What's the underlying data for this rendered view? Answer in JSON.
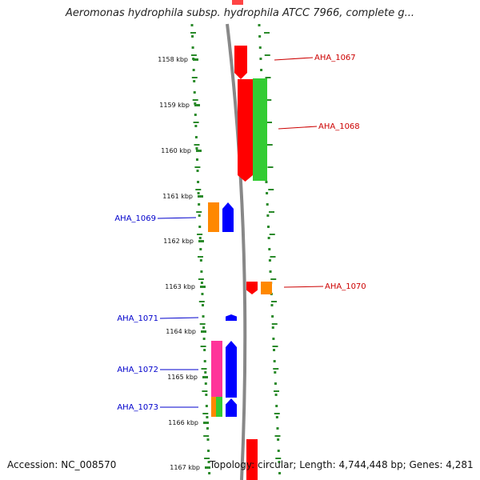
{
  "title": "Aeromonas hydrophila subsp. hydrophila ATCC 7966, complete g...",
  "footer": {
    "accession": "Accession: NC_008570",
    "topology": "Topology: circular; Length: 4,744,448 bp; Genes: 4,281"
  },
  "ruler": {
    "unit": "kbp",
    "ticks": [
      1158,
      1159,
      1160,
      1161,
      1162,
      1163,
      1164,
      1165,
      1166,
      1167
    ]
  },
  "genes": [
    {
      "name": "AHA_1067",
      "strand": "+",
      "color": "#cc0000"
    },
    {
      "name": "AHA_1068",
      "strand": "+",
      "color": "#cc0000"
    },
    {
      "name": "AHA_1069",
      "strand": "-",
      "color": "#0000cc"
    },
    {
      "name": "AHA_1070",
      "strand": "+",
      "color": "#cc0000"
    },
    {
      "name": "AHA_1071",
      "strand": "-",
      "color": "#0000cc"
    },
    {
      "name": "AHA_1072",
      "strand": "-",
      "color": "#0000cc"
    },
    {
      "name": "AHA_1073",
      "strand": "-",
      "color": "#0000cc"
    }
  ],
  "colors": {
    "ticks": "#2a8a2a",
    "backbone": "#888888",
    "cds_plus": "#ff0000",
    "cds_minus": "#0000ff",
    "cog_green": "#33cc33",
    "cog_orange": "#ff8800",
    "cog_pink": "#ff3399"
  }
}
